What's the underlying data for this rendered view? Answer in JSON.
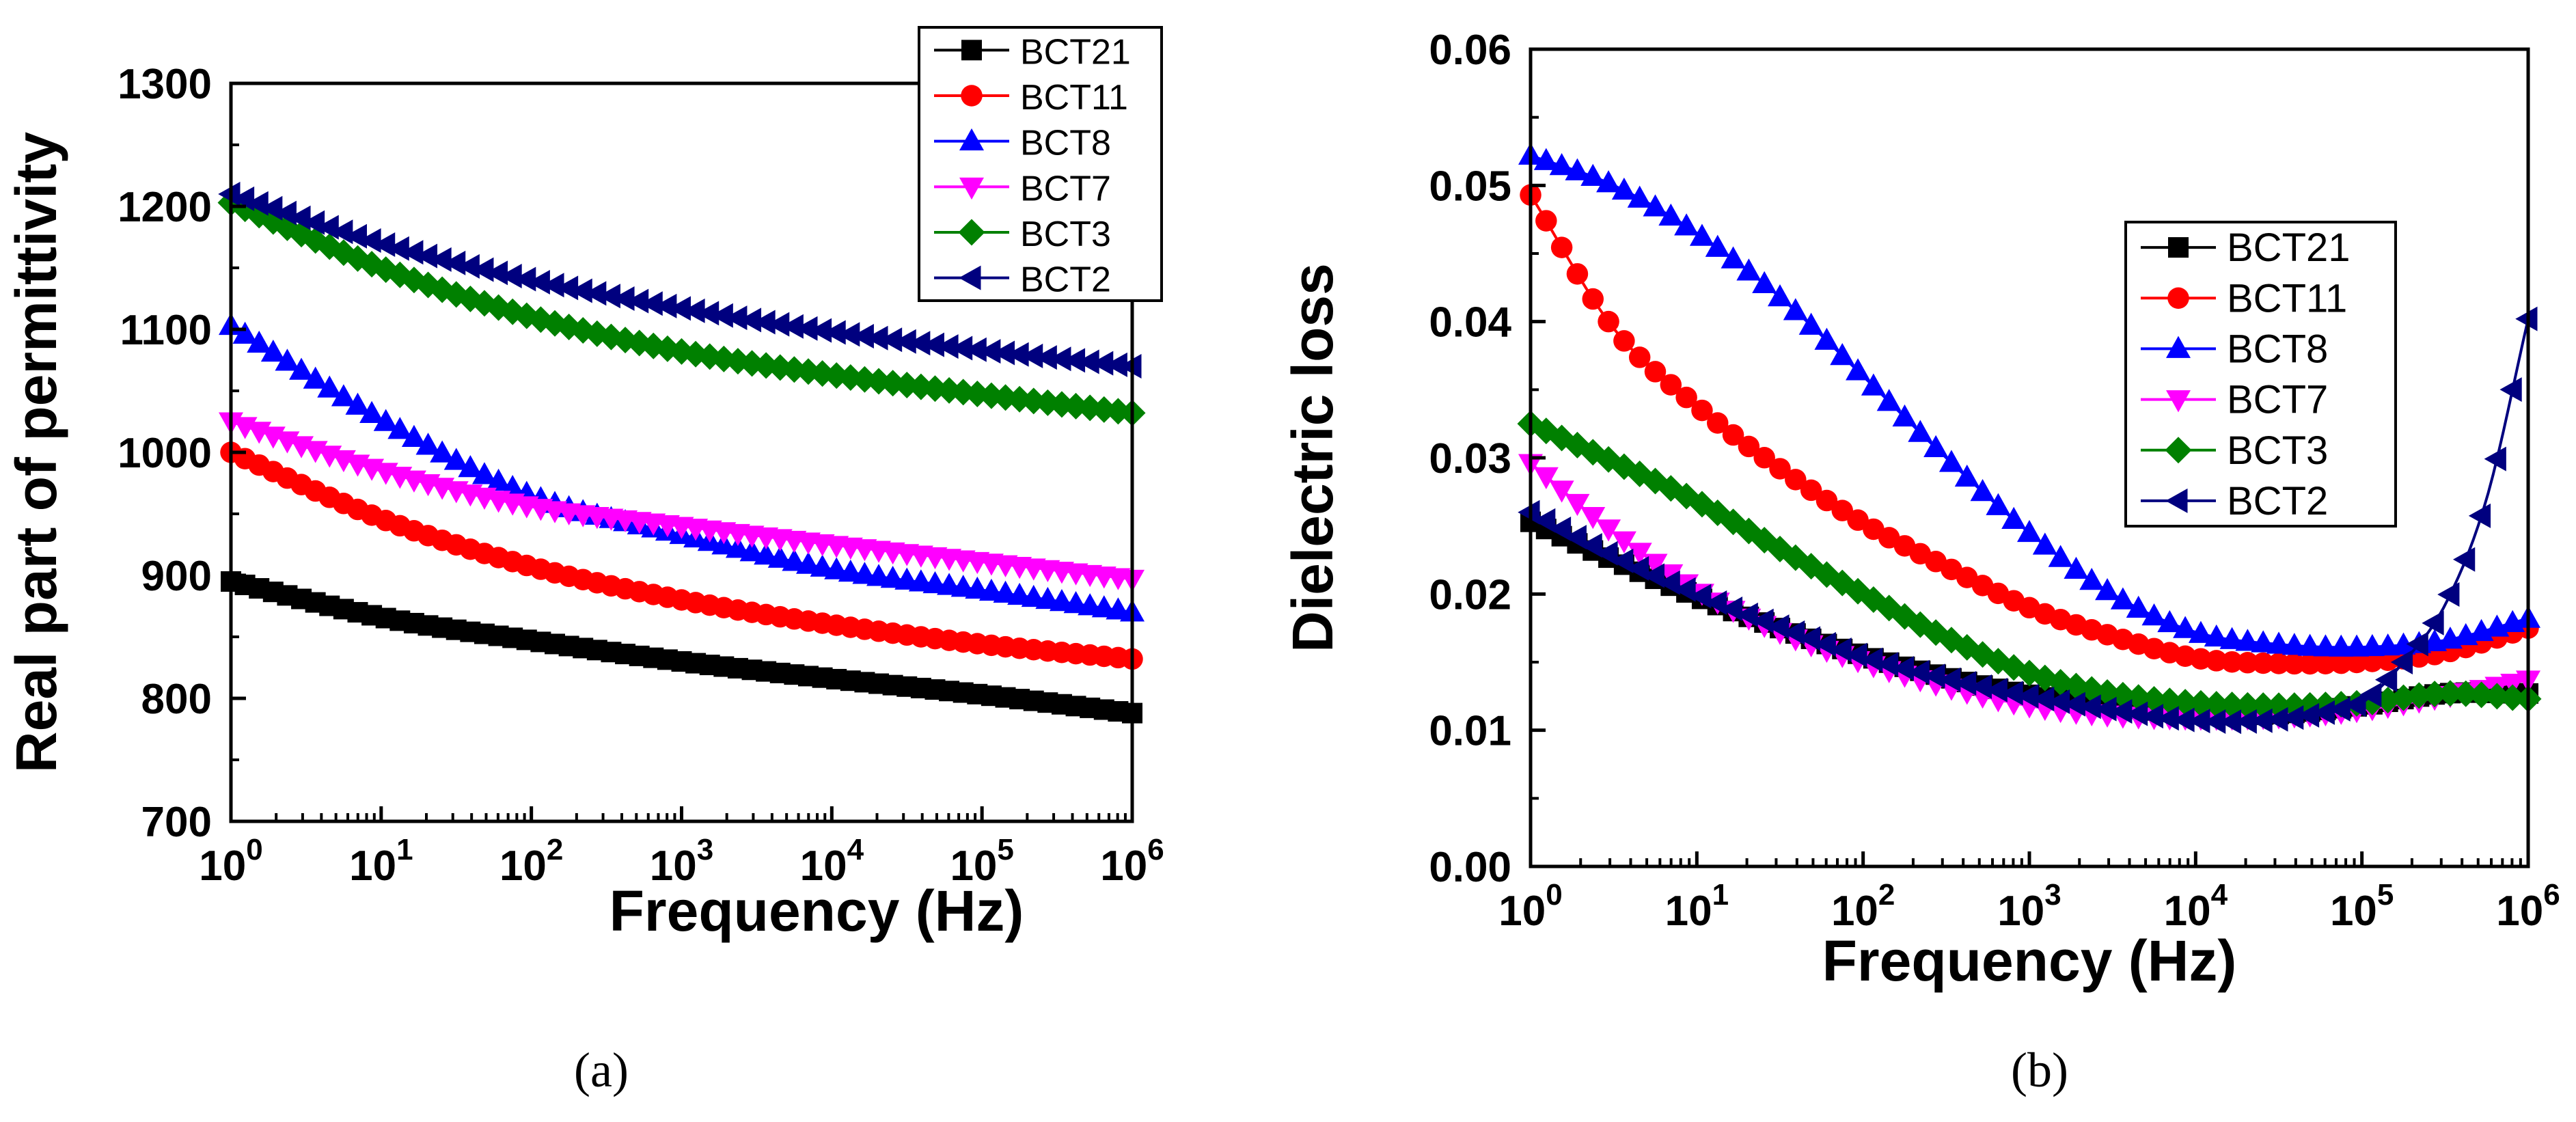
{
  "chart_data": [
    {
      "type": "line",
      "panel": "a",
      "caption": "(a)",
      "xlabel": "Frequency (Hz)",
      "ylabel": "Real part of permittivity",
      "xscale": "log",
      "xlim": [
        1,
        1000000
      ],
      "ylim": [
        700,
        1300
      ],
      "x_tick_bases": [
        "10",
        "10",
        "10",
        "10",
        "10",
        "10",
        "10"
      ],
      "x_tick_exponents": [
        "0",
        "1",
        "2",
        "3",
        "4",
        "5",
        "6"
      ],
      "y_ticks": [
        "700",
        "800",
        "900",
        "1000",
        "1100",
        "1200",
        "1300"
      ],
      "legend_position": "top-right",
      "series": [
        {
          "name": "BCT21",
          "color": "#000000",
          "marker": "square",
          "values": [
            895,
            866,
            847,
            830,
            816,
            803,
            788
          ]
        },
        {
          "name": "BCT11",
          "color": "#ff0000",
          "marker": "circle",
          "values": [
            1000,
            946,
            907,
            880,
            860,
            844,
            832
          ]
        },
        {
          "name": "BCT8",
          "color": "#0000ff",
          "marker": "triangle-up",
          "values": [
            1103,
            1027,
            965,
            933,
            905,
            888,
            870
          ]
        },
        {
          "name": "BCT7",
          "color": "#ff00ff",
          "marker": "triangle-down",
          "values": [
            1025,
            985,
            956,
            940,
            925,
            911,
            897
          ]
        },
        {
          "name": "BCT3",
          "color": "#008000",
          "marker": "diamond",
          "values": [
            1203,
            1150,
            1110,
            1082,
            1063,
            1047,
            1032
          ]
        },
        {
          "name": "BCT2",
          "color": "#00007f",
          "marker": "triangle-left",
          "values": [
            1210,
            1170,
            1140,
            1117,
            1098,
            1083,
            1070
          ]
        }
      ]
    },
    {
      "type": "line",
      "panel": "b",
      "caption": "(b)",
      "xlabel": "Frequency (Hz)",
      "ylabel": "Dielectric loss",
      "xscale": "log",
      "xlim": [
        1,
        1000000
      ],
      "ylim": [
        0.0,
        0.06
      ],
      "x_tick_bases": [
        "10",
        "10",
        "10",
        "10",
        "10",
        "10",
        "10"
      ],
      "x_tick_exponents": [
        "0",
        "1",
        "2",
        "3",
        "4",
        "5",
        "6"
      ],
      "y_ticks": [
        "0.00",
        "0.01",
        "0.02",
        "0.03",
        "0.04",
        "0.05",
        "0.06"
      ],
      "legend_position": "center-right",
      "series": [
        {
          "name": "BCT21",
          "color": "#000000",
          "marker": "square",
          "x_log": [
            0,
            0.5,
            1,
            1.5,
            2,
            2.5,
            3,
            3.5,
            4,
            4.5,
            5,
            5.5,
            6
          ],
          "values": [
            0.0253,
            0.0225,
            0.0198,
            0.0175,
            0.0155,
            0.0139,
            0.0126,
            0.0118,
            0.0112,
            0.0112,
            0.0118,
            0.0127,
            0.0127
          ]
        },
        {
          "name": "BCT11",
          "color": "#ff0000",
          "marker": "circle",
          "x_log": [
            0,
            0.5,
            1,
            1.5,
            2,
            2.5,
            3,
            3.5,
            4,
            4.5,
            5,
            5.5,
            6
          ],
          "values": [
            0.0493,
            0.0395,
            0.0338,
            0.0292,
            0.0252,
            0.022,
            0.019,
            0.0169,
            0.0153,
            0.0149,
            0.015,
            0.0157,
            0.0175
          ]
        },
        {
          "name": "BCT8",
          "color": "#0000ff",
          "marker": "triangle-up",
          "x_log": [
            0,
            0.5,
            1,
            1.5,
            2,
            2.5,
            3,
            3.5,
            4,
            4.5,
            5,
            5.5,
            6
          ],
          "values": [
            0.0522,
            0.05,
            0.0465,
            0.0418,
            0.036,
            0.03,
            0.0245,
            0.02,
            0.0172,
            0.0163,
            0.0161,
            0.0166,
            0.0182
          ]
        },
        {
          "name": "BCT7",
          "color": "#ff00ff",
          "marker": "triangle-down",
          "x_log": [
            0,
            0.5,
            1,
            1.5,
            2,
            2.5,
            3,
            3.5,
            4,
            4.5,
            5,
            5.5,
            6
          ],
          "values": [
            0.0296,
            0.0245,
            0.0203,
            0.0172,
            0.015,
            0.0132,
            0.0118,
            0.0111,
            0.0109,
            0.011,
            0.0115,
            0.0125,
            0.0137
          ]
        },
        {
          "name": "BCT3",
          "color": "#008000",
          "marker": "diamond",
          "x_log": [
            0,
            0.5,
            1,
            1.5,
            2,
            2.5,
            3,
            3.5,
            4,
            4.5,
            5,
            5.5,
            6
          ],
          "values": [
            0.0325,
            0.0297,
            0.0268,
            0.0233,
            0.02,
            0.0168,
            0.0142,
            0.0127,
            0.012,
            0.0118,
            0.012,
            0.0127,
            0.0123
          ]
        },
        {
          "name": "BCT2",
          "color": "#00007f",
          "marker": "triangle-left",
          "x_log": [
            0,
            0.5,
            1,
            1.5,
            2,
            2.5,
            3,
            3.5,
            4,
            4.5,
            5,
            5.25,
            5.5,
            5.75,
            6
          ],
          "values": [
            0.026,
            0.0228,
            0.02,
            0.0176,
            0.0154,
            0.0138,
            0.0125,
            0.0115,
            0.0107,
            0.0108,
            0.012,
            0.015,
            0.0192,
            0.027,
            0.0402
          ]
        }
      ]
    }
  ]
}
